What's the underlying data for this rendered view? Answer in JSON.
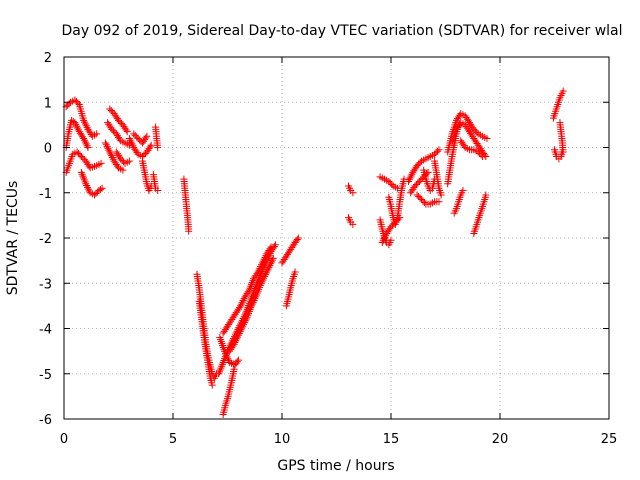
{
  "chart_data": {
    "type": "scatter",
    "title": "Day 092 of 2019, Sidereal Day-to-day VTEC variation (SDTVAR) for receiver wlal",
    "xlabel": "GPS time / hours",
    "ylabel": "SDTVAR / TECUs",
    "xlim": [
      0,
      25
    ],
    "ylim": [
      -6,
      2
    ],
    "xticks": [
      "0",
      "5",
      "10",
      "15",
      "20",
      "25"
    ],
    "yticks": [
      "-6",
      "-5",
      "-4",
      "-3",
      "-2",
      "-1",
      "0",
      "1",
      "2"
    ],
    "grid": true,
    "marker": "plus",
    "color": "#ff0000",
    "series": [
      {
        "name": "SDTVAR",
        "tracks": [
          [
            [
              0.1,
              0.9
            ],
            [
              0.3,
              1.0
            ],
            [
              0.5,
              1.05
            ],
            [
              0.7,
              0.95
            ],
            [
              0.9,
              0.6
            ],
            [
              1.1,
              0.4
            ],
            [
              1.3,
              0.25
            ],
            [
              1.5,
              0.3
            ]
          ],
          [
            [
              0.1,
              0.0
            ],
            [
              0.2,
              0.3
            ],
            [
              0.35,
              0.6
            ],
            [
              0.5,
              0.55
            ],
            [
              0.7,
              0.35
            ],
            [
              0.9,
              0.2
            ],
            [
              1.1,
              0.0
            ]
          ],
          [
            [
              0.1,
              -0.55
            ],
            [
              0.25,
              -0.35
            ],
            [
              0.4,
              -0.15
            ],
            [
              0.6,
              -0.1
            ],
            [
              0.8,
              -0.2
            ],
            [
              1.0,
              -0.3
            ],
            [
              1.2,
              -0.45
            ],
            [
              1.5,
              -0.4
            ],
            [
              1.7,
              -0.35
            ]
          ],
          [
            [
              0.8,
              -0.55
            ],
            [
              1.0,
              -0.8
            ],
            [
              1.2,
              -1.0
            ],
            [
              1.4,
              -1.05
            ],
            [
              1.6,
              -0.95
            ],
            [
              1.75,
              -0.9
            ]
          ],
          [
            [
              1.9,
              0.1
            ],
            [
              2.1,
              -0.1
            ],
            [
              2.3,
              -0.3
            ],
            [
              2.5,
              -0.45
            ],
            [
              2.7,
              -0.5
            ]
          ],
          [
            [
              2.0,
              0.55
            ],
            [
              2.2,
              0.4
            ],
            [
              2.4,
              0.3
            ],
            [
              2.6,
              0.15
            ],
            [
              2.8,
              0.1
            ],
            [
              3.0,
              0.05
            ]
          ],
          [
            [
              2.1,
              0.85
            ],
            [
              2.3,
              0.75
            ],
            [
              2.5,
              0.6
            ],
            [
              2.7,
              0.5
            ],
            [
              2.9,
              0.35
            ]
          ],
          [
            [
              2.4,
              -0.1
            ],
            [
              2.6,
              -0.25
            ],
            [
              2.8,
              -0.35
            ],
            [
              3.0,
              -0.3
            ]
          ],
          [
            [
              3.0,
              0.2
            ],
            [
              3.2,
              0.0
            ],
            [
              3.4,
              -0.15
            ],
            [
              3.6,
              -0.2
            ],
            [
              3.8,
              -0.1
            ],
            [
              4.0,
              0.05
            ]
          ],
          [
            [
              3.2,
              0.3
            ],
            [
              3.4,
              0.2
            ],
            [
              3.6,
              0.1
            ],
            [
              3.8,
              0.25
            ]
          ],
          [
            [
              3.6,
              -0.3
            ],
            [
              3.7,
              -0.55
            ],
            [
              3.8,
              -0.8
            ],
            [
              3.9,
              -0.95
            ],
            [
              4.0,
              -0.85
            ]
          ],
          [
            [
              4.1,
              -0.6
            ],
            [
              4.2,
              -0.9
            ],
            [
              4.3,
              -0.95
            ]
          ],
          [
            [
              4.2,
              0.45
            ],
            [
              4.25,
              0.2
            ],
            [
              4.3,
              0.0
            ]
          ],
          [
            [
              5.5,
              -0.7
            ],
            [
              5.55,
              -0.95
            ],
            [
              5.6,
              -1.2
            ],
            [
              5.65,
              -1.45
            ],
            [
              5.7,
              -1.7
            ],
            [
              5.72,
              -1.85
            ]
          ],
          [
            [
              6.1,
              -2.8
            ],
            [
              6.2,
              -3.1
            ],
            [
              6.3,
              -3.5
            ],
            [
              6.4,
              -3.9
            ],
            [
              6.5,
              -4.3
            ],
            [
              6.6,
              -4.6
            ],
            [
              6.7,
              -4.8
            ],
            [
              6.8,
              -5.0
            ],
            [
              6.9,
              -5.1
            ],
            [
              7.0,
              -5.0
            ]
          ],
          [
            [
              6.2,
              -3.4
            ],
            [
              6.3,
              -3.75
            ],
            [
              6.4,
              -4.1
            ],
            [
              6.5,
              -4.45
            ],
            [
              6.6,
              -4.75
            ],
            [
              6.7,
              -5.05
            ],
            [
              6.8,
              -5.25
            ]
          ],
          [
            [
              7.3,
              -5.9
            ],
            [
              7.4,
              -5.7
            ],
            [
              7.5,
              -5.55
            ],
            [
              7.6,
              -5.35
            ],
            [
              7.7,
              -5.15
            ],
            [
              7.8,
              -4.9
            ]
          ],
          [
            [
              7.15,
              -4.2
            ],
            [
              7.4,
              -4.55
            ],
            [
              7.6,
              -4.75
            ],
            [
              7.85,
              -4.8
            ],
            [
              8.0,
              -4.7
            ]
          ],
          [
            [
              7.1,
              -5.0
            ],
            [
              7.3,
              -4.75
            ],
            [
              7.5,
              -4.5
            ],
            [
              7.7,
              -4.3
            ],
            [
              7.9,
              -4.1
            ],
            [
              8.1,
              -3.9
            ],
            [
              8.3,
              -3.7
            ],
            [
              8.5,
              -3.45
            ],
            [
              8.7,
              -3.2
            ],
            [
              8.9,
              -2.95
            ],
            [
              9.1,
              -2.7
            ],
            [
              9.3,
              -2.5
            ],
            [
              9.5,
              -2.3
            ],
            [
              9.7,
              -2.15
            ]
          ],
          [
            [
              7.3,
              -4.1
            ],
            [
              7.5,
              -3.95
            ],
            [
              7.7,
              -3.8
            ],
            [
              7.9,
              -3.65
            ],
            [
              8.1,
              -3.5
            ],
            [
              8.3,
              -3.3
            ],
            [
              8.5,
              -3.15
            ],
            [
              8.7,
              -2.9
            ],
            [
              8.9,
              -2.75
            ],
            [
              9.1,
              -2.55
            ],
            [
              9.3,
              -2.35
            ],
            [
              9.5,
              -2.2
            ]
          ],
          [
            [
              7.6,
              -4.5
            ],
            [
              7.8,
              -4.35
            ],
            [
              8.0,
              -4.15
            ],
            [
              8.2,
              -3.95
            ],
            [
              8.4,
              -3.75
            ],
            [
              8.6,
              -3.5
            ],
            [
              8.8,
              -3.3
            ],
            [
              9.0,
              -3.05
            ],
            [
              9.2,
              -2.85
            ],
            [
              9.4,
              -2.65
            ],
            [
              9.6,
              -2.45
            ]
          ],
          [
            [
              10.0,
              -2.55
            ],
            [
              10.2,
              -2.4
            ],
            [
              10.4,
              -2.25
            ],
            [
              10.6,
              -2.1
            ],
            [
              10.75,
              -2.0
            ]
          ],
          [
            [
              10.2,
              -3.5
            ],
            [
              10.3,
              -3.3
            ],
            [
              10.4,
              -3.1
            ],
            [
              10.5,
              -2.9
            ],
            [
              10.6,
              -2.75
            ]
          ],
          [
            [
              13.05,
              -0.85
            ],
            [
              13.15,
              -0.95
            ],
            [
              13.25,
              -1.0
            ]
          ],
          [
            [
              13.05,
              -1.55
            ],
            [
              13.15,
              -1.65
            ],
            [
              13.25,
              -1.7
            ]
          ],
          [
            [
              14.5,
              -0.65
            ],
            [
              14.7,
              -0.7
            ],
            [
              14.9,
              -0.75
            ],
            [
              15.1,
              -0.85
            ],
            [
              15.3,
              -0.9
            ]
          ],
          [
            [
              14.5,
              -1.6
            ],
            [
              14.6,
              -1.8
            ],
            [
              14.7,
              -2.0
            ],
            [
              14.8,
              -2.1
            ],
            [
              14.9,
              -2.15
            ],
            [
              15.0,
              -2.05
            ]
          ],
          [
            [
              14.6,
              -2.1
            ],
            [
              14.8,
              -1.9
            ],
            [
              15.0,
              -1.75
            ],
            [
              15.2,
              -1.65
            ],
            [
              15.4,
              -1.55
            ]
          ],
          [
            [
              14.9,
              -1.1
            ],
            [
              15.0,
              -1.3
            ],
            [
              15.1,
              -1.55
            ],
            [
              15.2,
              -1.7
            ],
            [
              15.3,
              -1.55
            ],
            [
              15.4,
              -1.2
            ],
            [
              15.5,
              -0.9
            ],
            [
              15.6,
              -0.7
            ]
          ],
          [
            [
              15.8,
              -0.75
            ],
            [
              16.0,
              -0.55
            ],
            [
              16.2,
              -0.4
            ],
            [
              16.4,
              -0.3
            ],
            [
              16.6,
              -0.25
            ],
            [
              16.8,
              -0.2
            ],
            [
              17.0,
              -0.15
            ],
            [
              17.2,
              -0.05
            ]
          ],
          [
            [
              15.9,
              -1.0
            ],
            [
              16.1,
              -0.85
            ],
            [
              16.3,
              -0.75
            ],
            [
              16.5,
              -0.65
            ],
            [
              16.7,
              -0.55
            ]
          ],
          [
            [
              16.2,
              -1.05
            ],
            [
              16.4,
              -1.15
            ],
            [
              16.6,
              -1.25
            ],
            [
              16.8,
              -1.25
            ],
            [
              17.0,
              -1.2
            ],
            [
              17.2,
              -1.2
            ]
          ],
          [
            [
              16.5,
              -0.5
            ],
            [
              16.6,
              -0.7
            ],
            [
              16.7,
              -0.85
            ],
            [
              16.8,
              -0.95
            ],
            [
              16.9,
              -0.9
            ],
            [
              17.0,
              -0.7
            ]
          ],
          [
            [
              17.0,
              -0.3
            ],
            [
              17.1,
              -0.6
            ],
            [
              17.2,
              -0.9
            ],
            [
              17.3,
              -1.05
            ]
          ],
          [
            [
              17.6,
              -0.8
            ],
            [
              17.7,
              -0.5
            ],
            [
              17.8,
              -0.2
            ],
            [
              17.9,
              0.05
            ],
            [
              18.0,
              0.3
            ],
            [
              18.1,
              0.5
            ]
          ],
          [
            [
              17.6,
              -0.1
            ],
            [
              17.8,
              0.3
            ],
            [
              18.0,
              0.6
            ],
            [
              18.2,
              0.75
            ],
            [
              18.4,
              0.7
            ],
            [
              18.6,
              0.55
            ],
            [
              18.8,
              0.4
            ],
            [
              19.0,
              0.3
            ],
            [
              19.2,
              0.25
            ],
            [
              19.4,
              0.2
            ]
          ],
          [
            [
              17.8,
              0.1
            ],
            [
              18.0,
              0.4
            ],
            [
              18.2,
              0.55
            ],
            [
              18.4,
              0.5
            ],
            [
              18.6,
              0.35
            ],
            [
              18.8,
              0.2
            ],
            [
              19.0,
              0.05
            ],
            [
              19.2,
              -0.1
            ],
            [
              19.35,
              -0.2
            ]
          ],
          [
            [
              18.2,
              0.15
            ],
            [
              18.4,
              0.0
            ],
            [
              18.6,
              -0.05
            ],
            [
              18.8,
              -0.05
            ],
            [
              19.0,
              -0.1
            ],
            [
              19.2,
              -0.2
            ]
          ],
          [
            [
              17.9,
              -1.45
            ],
            [
              18.0,
              -1.35
            ],
            [
              18.1,
              -1.2
            ],
            [
              18.2,
              -1.05
            ],
            [
              18.3,
              -0.95
            ]
          ],
          [
            [
              18.8,
              -1.9
            ],
            [
              18.9,
              -1.75
            ],
            [
              19.0,
              -1.6
            ],
            [
              19.1,
              -1.45
            ],
            [
              19.2,
              -1.3
            ],
            [
              19.3,
              -1.15
            ],
            [
              19.35,
              -1.05
            ]
          ],
          [
            [
              22.45,
              0.65
            ],
            [
              22.55,
              0.8
            ],
            [
              22.65,
              0.95
            ],
            [
              22.75,
              1.1
            ],
            [
              22.85,
              1.2
            ],
            [
              22.9,
              1.25
            ]
          ],
          [
            [
              22.5,
              -0.05
            ],
            [
              22.6,
              -0.2
            ],
            [
              22.7,
              -0.25
            ],
            [
              22.8,
              -0.2
            ],
            [
              22.85,
              -0.1
            ]
          ],
          [
            [
              22.75,
              0.55
            ],
            [
              22.8,
              0.35
            ],
            [
              22.85,
              0.15
            ],
            [
              22.9,
              -0.1
            ]
          ]
        ]
      }
    ]
  }
}
